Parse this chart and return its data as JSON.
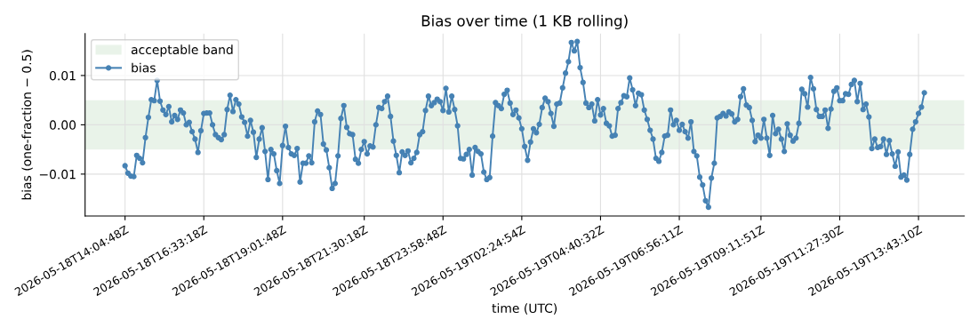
{
  "chart_data": {
    "type": "line",
    "title": "Bias over time (1 KB rolling)",
    "xlabel": "time (UTC)",
    "ylabel": "bias (one-fraction − 0.5)",
    "categories": [
      "2026-05-18T14:04:48Z",
      null,
      null,
      null,
      null,
      null,
      null,
      null,
      null,
      null,
      null,
      null,
      null,
      null,
      null,
      null,
      null,
      null,
      null,
      null,
      null,
      null,
      null,
      null,
      null,
      null,
      null,
      "2026-05-18T16:33:18Z",
      null,
      null,
      null,
      null,
      null,
      null,
      null,
      null,
      null,
      null,
      null,
      null,
      null,
      null,
      null,
      null,
      null,
      null,
      null,
      null,
      null,
      null,
      null,
      null,
      null,
      null,
      "2026-05-18T19:01:48Z",
      null,
      null,
      null,
      null,
      null,
      null,
      null,
      null,
      null,
      null,
      null,
      null,
      null,
      null,
      null,
      null,
      null,
      null,
      null,
      null,
      null,
      null,
      null,
      null,
      null,
      null,
      null,
      "2026-05-18T21:30:18Z",
      null,
      null,
      null,
      null,
      null,
      null,
      null,
      null,
      null,
      null,
      null,
      null,
      null,
      null,
      null,
      null,
      null,
      null,
      null,
      null,
      null,
      null,
      null,
      null,
      null,
      null,
      "2026-05-18T23:58:48Z",
      null,
      null,
      null,
      null,
      null,
      null,
      null,
      null,
      null,
      null,
      null,
      null,
      null,
      null,
      null,
      null,
      null,
      null,
      null,
      null,
      null,
      null,
      null,
      null,
      null,
      null,
      "2026-05-19T02:24:54Z",
      null,
      null,
      null,
      null,
      null,
      null,
      null,
      null,
      null,
      null,
      null,
      null,
      null,
      null,
      null,
      null,
      null,
      null,
      null,
      null,
      null,
      null,
      null,
      null,
      null,
      null,
      "2026-05-19T04:40:32Z",
      null,
      null,
      null,
      null,
      null,
      null,
      null,
      null,
      null,
      null,
      null,
      null,
      null,
      null,
      null,
      null,
      null,
      null,
      null,
      null,
      null,
      null,
      null,
      null,
      null,
      null,
      "2026-05-19T06:56:11Z",
      null,
      null,
      null,
      null,
      null,
      null,
      null,
      null,
      null,
      null,
      null,
      null,
      null,
      null,
      null,
      null,
      null,
      null,
      null,
      null,
      null,
      null,
      null,
      null,
      null,
      null,
      null,
      "2026-05-19T09:11:51Z",
      null,
      null,
      null,
      null,
      null,
      null,
      null,
      null,
      null,
      null,
      null,
      null,
      null,
      null,
      null,
      null,
      null,
      null,
      null,
      null,
      null,
      null,
      null,
      null,
      null,
      null,
      "2026-05-19T11:27:30Z",
      null,
      null,
      null,
      null,
      null,
      null,
      null,
      null,
      null,
      null,
      null,
      null,
      null,
      null,
      null,
      null,
      null,
      null,
      null,
      null,
      null,
      null,
      null,
      null,
      null,
      null,
      "2026-05-19T13:43:10Z",
      null,
      null
    ],
    "ylim": [
      -0.0185,
      0.0185
    ],
    "yticks": [
      {
        "value": -0.01,
        "label": "−0.01"
      },
      {
        "value": 0.0,
        "label": "0.00"
      },
      {
        "value": 0.01,
        "label": "0.01"
      }
    ],
    "grid": true,
    "legend": "top left",
    "marker": "circle",
    "line_style": "solid",
    "bands": [
      {
        "axis": "y",
        "from": -0.005,
        "to": 0.005,
        "label": "acceptable band",
        "color": "#e9f3e9"
      }
    ],
    "series": [
      {
        "name": "bias",
        "color": "#4682b4",
        "values": [
          -0.0083,
          -0.0098,
          -0.0104,
          -0.0105,
          -0.0062,
          -0.0068,
          -0.0077,
          -0.0026,
          0.0015,
          0.0051,
          0.0049,
          0.009,
          0.0048,
          0.003,
          0.0021,
          0.0037,
          0.0006,
          0.0019,
          0.0011,
          0.003,
          0.0024,
          0.0,
          0.0005,
          -0.0014,
          -0.0029,
          -0.0056,
          -0.0012,
          0.0023,
          0.0024,
          0.0024,
          0.0,
          -0.002,
          -0.0026,
          -0.003,
          -0.002,
          0.0031,
          0.006,
          0.0027,
          0.0051,
          0.0042,
          0.0016,
          0.0005,
          -0.0023,
          0.0009,
          -0.0015,
          -0.0066,
          -0.0029,
          -0.0006,
          -0.0054,
          -0.0111,
          -0.005,
          -0.0059,
          -0.0093,
          -0.0119,
          -0.0042,
          -0.0003,
          -0.0046,
          -0.0059,
          -0.0062,
          -0.0048,
          -0.0116,
          -0.0078,
          -0.0078,
          -0.0063,
          -0.0077,
          0.0006,
          0.0028,
          0.0021,
          -0.0039,
          -0.0051,
          -0.0087,
          -0.0129,
          -0.0119,
          -0.0063,
          0.0013,
          0.0039,
          -0.0005,
          -0.0018,
          -0.002,
          -0.007,
          -0.0078,
          -0.005,
          -0.0034,
          -0.0059,
          -0.0043,
          -0.0045,
          0.0,
          0.0035,
          0.0033,
          0.0047,
          0.0058,
          0.0017,
          -0.0033,
          -0.0062,
          -0.0097,
          -0.0055,
          -0.0062,
          -0.0053,
          -0.0077,
          -0.0068,
          -0.0056,
          -0.002,
          -0.0014,
          0.0029,
          0.0058,
          0.0039,
          0.0045,
          0.0052,
          0.0047,
          0.0029,
          0.0074,
          0.0026,
          0.0058,
          0.0031,
          -0.0002,
          -0.0068,
          -0.0069,
          -0.006,
          -0.005,
          -0.0102,
          -0.0046,
          -0.0054,
          -0.0059,
          -0.0096,
          -0.0111,
          -0.0107,
          -0.0023,
          0.0045,
          0.0039,
          0.0033,
          0.0062,
          0.007,
          0.0044,
          0.0021,
          0.003,
          0.0014,
          -0.0008,
          -0.0044,
          -0.0072,
          -0.0035,
          -0.0008,
          -0.0016,
          0.0001,
          0.0035,
          0.0054,
          0.0047,
          0.0023,
          -0.0003,
          0.0042,
          0.0044,
          0.0075,
          0.0105,
          0.0128,
          0.0167,
          0.015,
          0.0169,
          0.0116,
          0.0086,
          0.0044,
          0.0035,
          0.0042,
          0.0008,
          0.0051,
          0.002,
          0.0033,
          0.0003,
          -0.0002,
          -0.0023,
          -0.0021,
          0.0033,
          0.0045,
          0.0059,
          0.0057,
          0.0095,
          0.0071,
          0.0039,
          0.0064,
          0.0061,
          0.003,
          0.0011,
          -0.0011,
          -0.0029,
          -0.0068,
          -0.0074,
          -0.0056,
          -0.0023,
          -0.0021,
          0.003,
          0.0,
          0.0009,
          -0.0011,
          0.0001,
          -0.0014,
          -0.0027,
          0.0006,
          -0.0054,
          -0.0063,
          -0.0106,
          -0.0122,
          -0.0154,
          -0.0167,
          -0.0108,
          -0.0078,
          0.0014,
          0.0017,
          0.0023,
          0.0018,
          0.0026,
          0.0022,
          0.0006,
          0.0011,
          0.0057,
          0.0073,
          0.004,
          0.0035,
          0.0009,
          -0.0034,
          -0.0021,
          -0.0027,
          0.0011,
          -0.0027,
          -0.0062,
          0.0019,
          -0.0018,
          -0.0009,
          -0.0029,
          -0.0054,
          0.0002,
          -0.0021,
          -0.0033,
          -0.0027,
          0.0003,
          0.0072,
          0.0063,
          0.0036,
          0.0096,
          0.0073,
          0.0031,
          0.0017,
          0.0017,
          0.003,
          -0.0007,
          0.0032,
          0.0068,
          0.0075,
          0.0049,
          0.0049,
          0.0063,
          0.0062,
          0.0082,
          0.009,
          0.0047,
          0.0084,
          0.0031,
          0.0042,
          0.0016,
          -0.0048,
          -0.0029,
          -0.0046,
          -0.0044,
          -0.0029,
          -0.006,
          -0.0032,
          -0.0059,
          -0.0084,
          -0.0055,
          -0.0106,
          -0.0102,
          -0.0112,
          -0.006,
          -0.0009,
          0.0006,
          0.0023,
          0.0036,
          0.0065
        ]
      }
    ]
  }
}
